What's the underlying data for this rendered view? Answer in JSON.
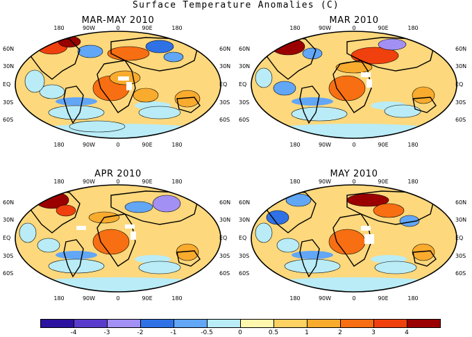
{
  "title": "Surface Temperature Anomalies (C)",
  "lon_labels": [
    "180",
    "90W",
    "0",
    "90E",
    "180"
  ],
  "lat_labels": [
    "60N",
    "30N",
    "EQ",
    "30S",
    "60S"
  ],
  "panels": [
    {
      "title": "MAR-MAY 2010"
    },
    {
      "title": "MAR 2010"
    },
    {
      "title": "APR 2010"
    },
    {
      "title": "MAY 2010"
    }
  ],
  "colorbar": {
    "colors": [
      "#2c12a0",
      "#5a3ccc",
      "#a290f4",
      "#2f72e6",
      "#62a6f6",
      "#b9ecf6",
      "#fff6ae",
      "#fdd162",
      "#f9ab2e",
      "#f76f12",
      "#f0400e",
      "#9a0000"
    ],
    "ticks": [
      "-4",
      "-3",
      "-2",
      "-1",
      "-0.5",
      "0",
      "0.5",
      "1",
      "2",
      "3",
      "4"
    ]
  },
  "legend_colors": {
    "ocean_base": "#fdd87c",
    "land_warm": "#f9a92c",
    "cool_blue": "#5d9ff2",
    "no_data": "#ffffff"
  }
}
